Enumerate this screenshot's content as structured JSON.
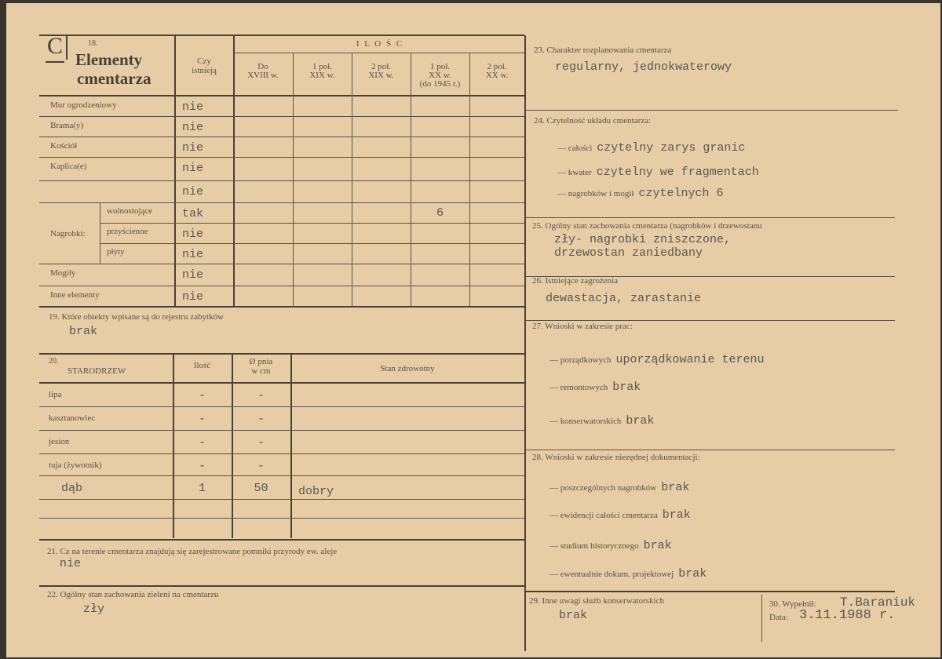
{
  "section_letter": "C",
  "s18": {
    "number": "18.",
    "title_line1": "Elementy",
    "title_line2": "cmentarza",
    "col_czy": [
      "Czy",
      "istnieją"
    ],
    "ilosc": "I L O Ś C",
    "periods": [
      [
        "Do",
        "XVIII w.",
        ""
      ],
      [
        "1 poł.",
        "XIX w.",
        ""
      ],
      [
        "2 poł.",
        "XIX w.",
        ""
      ],
      [
        "1 poł.",
        "XX w.",
        "(do 1945 r.)"
      ],
      [
        "2 poł.",
        "XX w.",
        ""
      ]
    ],
    "nagrobki_label": "Nagrobki:",
    "rows": [
      {
        "label": "Mur ogrodzeniowy",
        "sub": "",
        "czy": "nie",
        "counts": [
          "",
          "",
          "",
          "",
          ""
        ]
      },
      {
        "label": "Brama(y)",
        "sub": "",
        "czy": "nie",
        "counts": [
          "",
          "",
          "",
          "",
          ""
        ]
      },
      {
        "label": "Kościół",
        "sub": "",
        "czy": "nie",
        "counts": [
          "",
          "",
          "",
          "",
          ""
        ]
      },
      {
        "label": "Kaplica(e)",
        "sub": "",
        "czy": "nie",
        "counts": [
          "",
          "",
          "",
          "",
          ""
        ]
      },
      {
        "label": "",
        "sub": "",
        "czy": "nie",
        "counts": [
          "",
          "",
          "",
          "",
          ""
        ]
      },
      {
        "label": "",
        "sub": "wolnostojące",
        "czy": "tak",
        "counts": [
          "",
          "",
          "",
          "6",
          ""
        ]
      },
      {
        "label": "",
        "sub": "przyścienne",
        "czy": "nie",
        "counts": [
          "",
          "",
          "",
          "",
          ""
        ]
      },
      {
        "label": "",
        "sub": "płyty",
        "czy": "nie",
        "counts": [
          "",
          "",
          "",
          "",
          ""
        ]
      },
      {
        "label": "Mogiły",
        "sub": "",
        "czy": "nie",
        "counts": [
          "",
          "",
          "",
          "",
          ""
        ]
      },
      {
        "label": "Inne elementy",
        "sub": "",
        "czy": "nie",
        "counts": [
          "",
          "",
          "",
          "",
          ""
        ]
      }
    ]
  },
  "s19": {
    "label": "19. Które obiekty wpisane są do rejestru zabytków",
    "value": "brak"
  },
  "s20": {
    "number": "20.",
    "headers": [
      "STARODRZEW",
      "Ilość",
      "Ø pnia",
      "w cm",
      "Stan zdrowotny"
    ],
    "rows": [
      {
        "name": "lipa",
        "count": "-",
        "diameter": "-",
        "state": ""
      },
      {
        "name": "kasztanowiec",
        "count": "-",
        "diameter": "-",
        "state": ""
      },
      {
        "name": "jesion",
        "count": "-",
        "diameter": "-",
        "state": ""
      },
      {
        "name": "tuja (żywotnik)",
        "count": "-",
        "diameter": "-",
        "state": ""
      },
      {
        "name": "dąb",
        "count": "1",
        "diameter": "50",
        "state": "dobry"
      },
      {
        "name": "",
        "count": "",
        "diameter": "",
        "state": ""
      },
      {
        "name": "",
        "count": "",
        "diameter": "",
        "state": ""
      }
    ]
  },
  "s21": {
    "label": "21. Cz na terenie cmentarza znajdują się zarejestrowane pomniki przyrody ew. aleje",
    "value": "nie"
  },
  "s22": {
    "label": "22. Ogólny stan zachowania zieleni na cmentarzu",
    "value": "zły"
  },
  "s23": {
    "label": "23. Charakter rozplanowania cmentarza",
    "value": "regularny, jednokwaterowy"
  },
  "s24": {
    "label": "24. Czytelność układu cmentarza:",
    "items": [
      {
        "label": "— całości",
        "value": "czytelny zarys granic"
      },
      {
        "label": "— kwater",
        "value": "czytelny we fragmentach"
      },
      {
        "label": "— nagrobków i mogił",
        "value": "czytelnych 6"
      }
    ]
  },
  "s25": {
    "label": "25. Ogólny stan zachowania cmentarza (nagrobków i drzewostanu",
    "value1": "zły- nagrobki zniszczone,",
    "value2": "drzewostan zaniedbany"
  },
  "s26": {
    "label": "26. Istniejące zagrożenia",
    "value": "dewastacja, zarastanie"
  },
  "s27": {
    "label": "27. Wnioski w zakresie prac:",
    "items": [
      {
        "label": "— porządkowych",
        "value": "uporządkowanie terenu"
      },
      {
        "label": "— remontowych",
        "value": "brak"
      },
      {
        "label": "— konserwatorskich",
        "value": "brak"
      }
    ]
  },
  "s28": {
    "label": "28. Wnioski w zakresie niezędnej dokumentacji:",
    "items": [
      {
        "label": "— poszczególnych nagrobków",
        "value": "brak"
      },
      {
        "label": "— ewidencji całości cmentarza",
        "value": "brak"
      },
      {
        "label": "— studium historycznego",
        "value": "brak"
      },
      {
        "label": "— ewentualnie dokum. projektowej",
        "value": "brak"
      }
    ]
  },
  "s29": {
    "label": "29. Inne uwagi służb konserwatorskich",
    "value": "brak"
  },
  "s30": {
    "label": "30. Wypełnił:",
    "value": "T.Baraniuk",
    "date_label": "Data:",
    "date": "3.11.1988 r."
  }
}
